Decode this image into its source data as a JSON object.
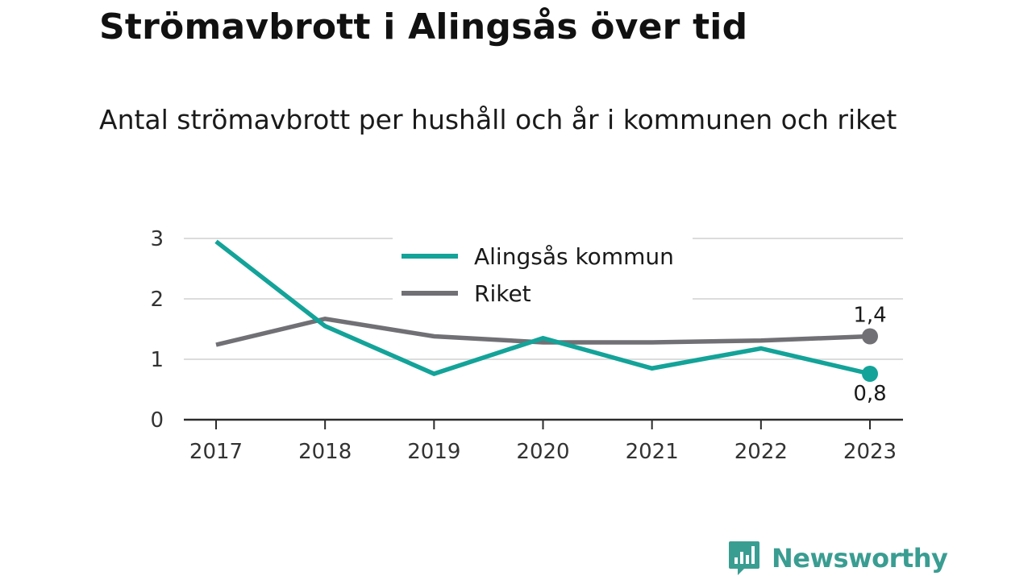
{
  "header": {
    "title": "Strömavbrott i Alingsås över tid",
    "subtitle": "Antal strömavbrott per hushåll och år i kommunen och riket"
  },
  "brand": {
    "name": "Newsworthy",
    "icon": "bar-chart-speech-bubble-icon",
    "color": "#3a9d92"
  },
  "chart_data": {
    "type": "line",
    "x": [
      "2017",
      "2018",
      "2019",
      "2020",
      "2021",
      "2022",
      "2023"
    ],
    "ylim": [
      0,
      3
    ],
    "yticks": [
      0,
      1,
      2,
      3
    ],
    "grid": true,
    "legend_placement": "top-center",
    "series": [
      {
        "name": "Alingsås kommun",
        "color": "#13a399",
        "values": [
          2.95,
          1.55,
          0.76,
          1.35,
          0.85,
          1.18,
          0.76
        ]
      },
      {
        "name": "Riket",
        "color": "#717075",
        "values": [
          1.24,
          1.67,
          1.38,
          1.28,
          1.28,
          1.31,
          1.38
        ]
      }
    ],
    "end_labels": [
      {
        "series": "Riket",
        "text": "1,4",
        "position": "above"
      },
      {
        "series": "Alingsås kommun",
        "text": "0,8",
        "position": "below"
      }
    ]
  }
}
